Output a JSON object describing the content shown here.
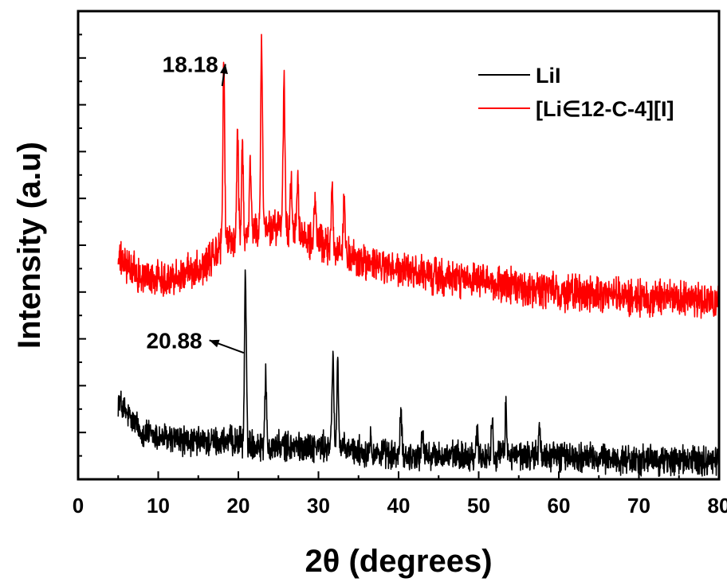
{
  "chart_data": {
    "type": "line",
    "title": "",
    "xlabel": "2θ (degrees)",
    "ylabel": "Intensity (a.u)",
    "xlim": [
      0,
      80
    ],
    "ylim": [
      0,
      100
    ],
    "x_ticks": [
      "0",
      "10",
      "20",
      "30",
      "40",
      "50",
      "60",
      "70",
      "80"
    ],
    "y_tick_labels_shown": false,
    "grid": false,
    "legend_position": "top-right",
    "series": [
      {
        "name": "LiI",
        "color": "#000000",
        "x_range": [
          5,
          80
        ],
        "baseline_points": [
          [
            5,
            17
          ],
          [
            6,
            14
          ],
          [
            8,
            10
          ],
          [
            10,
            9
          ],
          [
            14,
            8
          ],
          [
            18,
            8
          ],
          [
            20,
            8
          ],
          [
            24,
            7
          ],
          [
            30,
            7
          ],
          [
            40,
            5
          ],
          [
            50,
            5
          ],
          [
            60,
            5
          ],
          [
            70,
            4
          ],
          [
            80,
            4
          ]
        ],
        "noise": 2.5,
        "peaks": [
          {
            "x": 20.88,
            "y": 44
          },
          {
            "x": 23.4,
            "y": 22
          },
          {
            "x": 31.8,
            "y": 27
          },
          {
            "x": 32.4,
            "y": 25
          },
          {
            "x": 36.5,
            "y": 10
          },
          {
            "x": 40.3,
            "y": 14
          },
          {
            "x": 43,
            "y": 10
          },
          {
            "x": 49.8,
            "y": 10
          },
          {
            "x": 51.7,
            "y": 13
          },
          {
            "x": 53.4,
            "y": 15
          },
          {
            "x": 57.6,
            "y": 11
          }
        ]
      },
      {
        "name": "[Li∈12-C-4][I]",
        "color": "#ff0000",
        "x_range": [
          5,
          80
        ],
        "baseline_points": [
          [
            5,
            47
          ],
          [
            8,
            43
          ],
          [
            12,
            43
          ],
          [
            16,
            46
          ],
          [
            18,
            50
          ],
          [
            22,
            53
          ],
          [
            25,
            54
          ],
          [
            28,
            52
          ],
          [
            32,
            49
          ],
          [
            36,
            46
          ],
          [
            42,
            44
          ],
          [
            50,
            42
          ],
          [
            60,
            40
          ],
          [
            70,
            39
          ],
          [
            80,
            38
          ]
        ],
        "noise": 3,
        "peaks": [
          {
            "x": 18.18,
            "y": 90
          },
          {
            "x": 19.9,
            "y": 74
          },
          {
            "x": 20.5,
            "y": 72
          },
          {
            "x": 21.5,
            "y": 68
          },
          {
            "x": 22.9,
            "y": 93
          },
          {
            "x": 25.7,
            "y": 85
          },
          {
            "x": 26.6,
            "y": 64
          },
          {
            "x": 27.4,
            "y": 63
          },
          {
            "x": 29.6,
            "y": 61
          },
          {
            "x": 31.7,
            "y": 64
          },
          {
            "x": 33.2,
            "y": 60
          }
        ]
      }
    ],
    "annotations": [
      {
        "text": "18.18",
        "target": [
          18.18,
          84
        ],
        "label_at": [
          14,
          87
        ]
      },
      {
        "text": "20.88",
        "target": [
          20.88,
          27
        ],
        "label_at": [
          12,
          28
        ]
      }
    ]
  }
}
